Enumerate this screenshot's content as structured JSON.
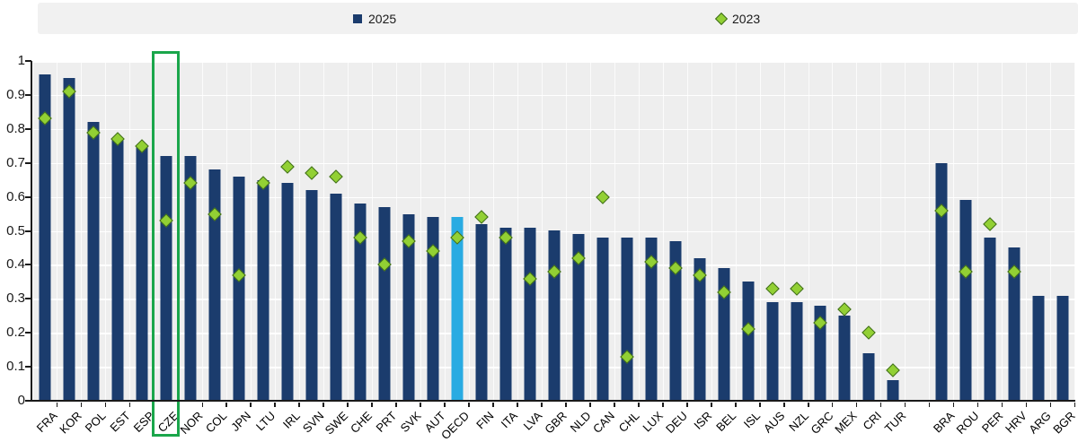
{
  "legend": {
    "items": [
      {
        "label": "2025",
        "marker": "square",
        "color": "#1b3c6d"
      },
      {
        "label": "2023",
        "marker": "diamond",
        "color": "#92d034"
      }
    ]
  },
  "chart_data": {
    "type": "bar",
    "title": "",
    "xlabel": "",
    "ylabel": "",
    "ylim": [
      0,
      1
    ],
    "grid": true,
    "legend_position": "top",
    "ytick_labels": [
      "1",
      "0.9",
      "0.8",
      "0.7",
      "0.6",
      "0.5",
      "0.4",
      "0.3",
      "0.2",
      "0.1",
      "0"
    ],
    "categories": [
      "FRA",
      "KOR",
      "POL",
      "EST",
      "ESP",
      "CZE",
      "NOR",
      "COL",
      "JPN",
      "LTU",
      "IRL",
      "SVN",
      "SWE",
      "CHE",
      "PRT",
      "SVK",
      "AUT",
      "OECD",
      "FIN",
      "ITA",
      "LVA",
      "GBR",
      "NLD",
      "CAN",
      "CHL",
      "LUX",
      "DEU",
      "ISR",
      "BEL",
      "ISL",
      "AUS",
      "NZL",
      "GRC",
      "MEX",
      "CRI",
      "TUR",
      "BRA",
      "ROU",
      "PER",
      "HRV",
      "ARG",
      "BGR"
    ],
    "gap_after_index": 35,
    "series": [
      {
        "name": "2025",
        "type": "bar",
        "values": [
          0.96,
          0.95,
          0.82,
          0.77,
          0.75,
          0.72,
          0.72,
          0.68,
          0.66,
          0.65,
          0.64,
          0.62,
          0.61,
          0.58,
          0.57,
          0.55,
          0.54,
          0.54,
          0.52,
          0.51,
          0.51,
          0.5,
          0.49,
          0.48,
          0.48,
          0.48,
          0.47,
          0.42,
          0.39,
          0.35,
          0.29,
          0.29,
          0.28,
          0.25,
          0.14,
          0.06,
          0.7,
          0.59,
          0.48,
          0.45,
          0.31,
          0.31
        ]
      },
      {
        "name": "2023",
        "type": "scatter",
        "values": [
          0.83,
          0.91,
          0.79,
          0.77,
          0.75,
          0.53,
          0.64,
          0.55,
          0.37,
          0.64,
          0.69,
          0.67,
          0.66,
          0.48,
          0.4,
          0.47,
          0.44,
          0.48,
          0.54,
          0.48,
          0.36,
          0.38,
          0.42,
          0.6,
          0.13,
          0.41,
          0.39,
          0.37,
          0.32,
          0.21,
          0.33,
          0.33,
          0.23,
          0.27,
          0.2,
          0.09,
          0.56,
          0.38,
          0.52,
          0.38,
          null,
          null
        ]
      }
    ],
    "bar_color": "#1b3c6d",
    "special_bars": {
      "OECD": "#29abe2"
    },
    "marker_color": "#92d034",
    "marker_border_color": "#3e6b1b",
    "highlight": {
      "category": "CZE",
      "box_color": "#1aa64b"
    }
  }
}
